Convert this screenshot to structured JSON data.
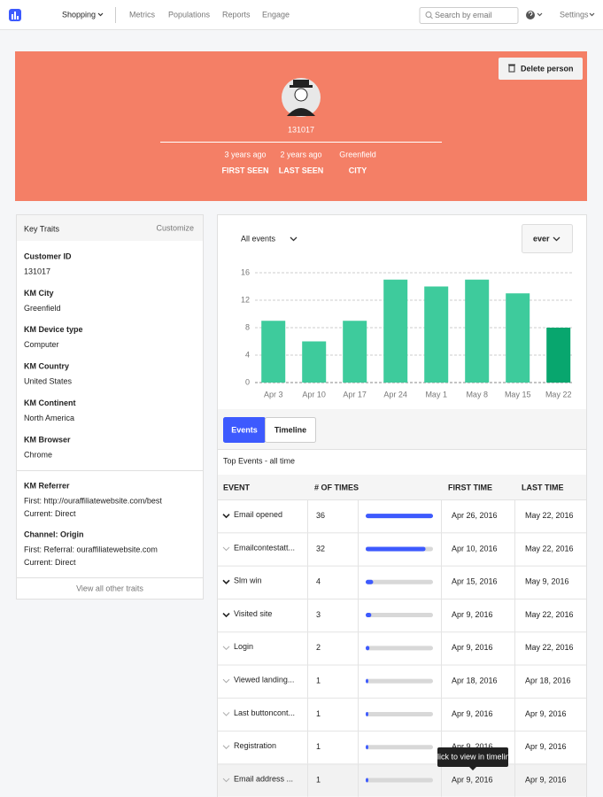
{
  "nav": {
    "brand_menu": "Shopping",
    "links": [
      "Metrics",
      "Populations",
      "Reports",
      "Engage"
    ],
    "search_placeholder": "Search by email",
    "settings": "Settings"
  },
  "profile": {
    "delete_button": "Delete person",
    "id": "131017",
    "stats": [
      {
        "value": "3 years ago",
        "label": "FIRST SEEN"
      },
      {
        "value": "2 years ago",
        "label": "LAST SEEN"
      },
      {
        "value": "Greenfield",
        "label": "CITY"
      }
    ]
  },
  "key_traits": {
    "title": "Key Traits",
    "action": "Customize",
    "traits": [
      {
        "name": "Customer ID",
        "value": "131017"
      },
      {
        "name": "KM City",
        "value": "Greenfield"
      },
      {
        "name": "KM Device type",
        "value": "Computer"
      },
      {
        "name": "KM Country",
        "value": "United States"
      },
      {
        "name": "KM Continent",
        "value": "North America"
      },
      {
        "name": "KM Browser",
        "value": "Chrome"
      }
    ],
    "more_traits": [
      {
        "name": "KM Referrer",
        "lines": [
          "First: http://ouraffiliatewebsite.com/best",
          "Current: Direct"
        ]
      },
      {
        "name": "Channel: Origin",
        "lines": [
          "First: Referral: ouraffiliatewebsite.com",
          "Current: Direct"
        ]
      }
    ],
    "footer": "View all other traits"
  },
  "events_panel": {
    "filter": "All events",
    "range": "ever",
    "tabs": [
      "Events",
      "Timeline"
    ],
    "active_tab": 0
  },
  "chart_data": {
    "type": "bar",
    "categories": [
      "Apr 3",
      "Apr 10",
      "Apr 17",
      "Apr 24",
      "May 1",
      "May 8",
      "May 15",
      "May 22"
    ],
    "values": [
      9,
      6,
      9,
      15,
      14,
      15,
      13,
      8
    ],
    "colors": [
      "#3ecb9c",
      "#3ecb9c",
      "#3ecb9c",
      "#3ecb9c",
      "#3ecb9c",
      "#3ecb9c",
      "#3ecb9c",
      "#08a66e"
    ],
    "ylim": [
      0,
      16
    ],
    "yticks": [
      0,
      4,
      8,
      12,
      16
    ],
    "grid": true
  },
  "table": {
    "title": "Top Events - all time",
    "columns": [
      "EVENT",
      "# OF TIMES",
      "FIRST TIME",
      "LAST TIME"
    ],
    "bar_color": "#3d5afe",
    "rows": [
      {
        "event": "Email opened",
        "count": 36,
        "first": "Apr 26, 2016",
        "last": "May 22, 2016",
        "expanded": true
      },
      {
        "event": "Emailcontestatt...",
        "count": 32,
        "first": "Apr 10, 2016",
        "last": "May 22, 2016",
        "expanded": false
      },
      {
        "event": "Slm win",
        "count": 4,
        "first": "Apr 15, 2016",
        "last": "May 9, 2016",
        "expanded": true
      },
      {
        "event": "Visited site",
        "count": 3,
        "first": "Apr 9, 2016",
        "last": "May 22, 2016",
        "expanded": true
      },
      {
        "event": "Login",
        "count": 2,
        "first": "Apr 9, 2016",
        "last": "May 22, 2016",
        "expanded": false
      },
      {
        "event": "Viewed landing...",
        "count": 1,
        "first": "Apr 18, 2016",
        "last": "Apr 18, 2016",
        "expanded": false
      },
      {
        "event": "Last buttoncont...",
        "count": 1,
        "first": "Apr 9, 2016",
        "last": "Apr 9, 2016",
        "expanded": false
      },
      {
        "event": "Registration",
        "count": 1,
        "first": "Apr 9, 2016",
        "last": "Apr 9, 2016",
        "expanded": false
      },
      {
        "event": "Email address ...",
        "count": 1,
        "first": "Apr 9, 2016",
        "last": "Apr 9, 2016",
        "expanded": false
      }
    ],
    "tooltip": "Click to view in timeline"
  }
}
